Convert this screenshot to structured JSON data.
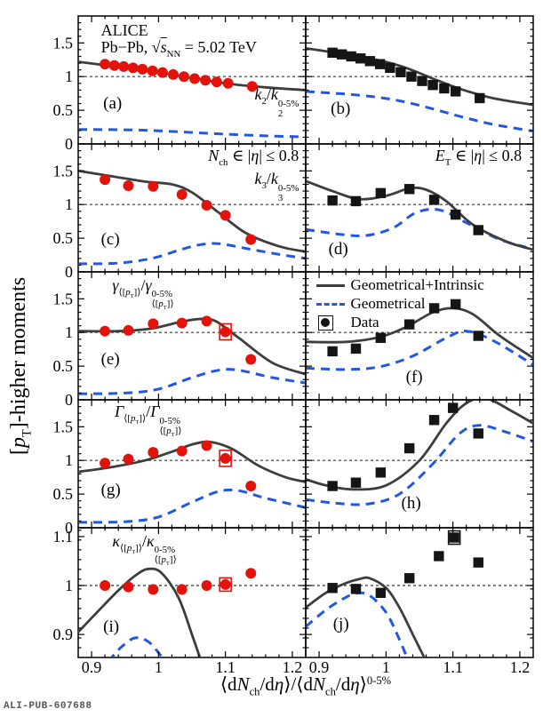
{
  "figure": {
    "watermark": "ALI-PUB-607688",
    "ylabel": "[*{p}_{T}]-higher moments",
    "xlabel": "⟨d*{N}_{ch}/d*{η}⟩/⟨d*{N}_{ch}/d*{η}⟩^{0-5%}",
    "colors": {
      "red": "#e3120b",
      "black": "#151515",
      "solid": "#3d3d3d",
      "dashed": "#2157e2",
      "unity": "#333333",
      "frame": "#000000",
      "watermark": "#555555"
    },
    "legend": {
      "fx": 0.045,
      "fy": 0.035,
      "entries": [
        {
          "swatch": "solid-line",
          "label": "Geometrical+Intrinsic"
        },
        {
          "swatch": "dashed-line",
          "label": "Geometrical"
        },
        {
          "swatch": "data-marker",
          "label": "Data"
        }
      ]
    },
    "axes": {
      "xlim": [
        0.88,
        1.22
      ],
      "xticks": {
        "major": [
          0.9,
          1.0,
          1.1,
          1.2
        ],
        "labels": [
          "0.9",
          "1",
          "1.1",
          "1.2"
        ],
        "minor_step": 0.02
      },
      "wide_ylim": [
        0,
        1.9
      ],
      "wide_yticks": {
        "major": [
          0,
          0.5,
          1.0,
          1.5
        ],
        "labels": [
          "0",
          "0.5",
          "1",
          "1.5"
        ],
        "minor_step": 0.1
      },
      "narrow_ylim": [
        0.853,
        1.118
      ],
      "narrow_yticks": {
        "major": [
          0.9,
          1.0,
          1.1
        ],
        "labels": [
          "0.9",
          "1",
          "1.1"
        ],
        "minor_step": 0.02
      },
      "unity_y": 1.0
    }
  },
  "chart_data": [
    {
      "type": "scatter",
      "id": "a",
      "row": 0,
      "col": 0,
      "yscale": "wide",
      "marker": "circle",
      "color_key": "red",
      "err": 0.03,
      "box_idx": [],
      "x": [
        0.92,
        0.934,
        0.948,
        0.962,
        0.976,
        0.991,
        1.006,
        1.022,
        1.038,
        1.054,
        1.07,
        1.087,
        1.104,
        1.14
      ],
      "y": [
        1.185,
        1.165,
        1.15,
        1.13,
        1.11,
        1.085,
        1.06,
        1.03,
        1.0,
        0.97,
        0.945,
        0.92,
        0.9,
        0.855
      ],
      "solid": {
        "x": [
          0.88,
          0.95,
          1.0,
          1.05,
          1.1,
          1.16,
          1.22
        ],
        "y": [
          1.22,
          1.13,
          1.06,
          0.98,
          0.9,
          0.84,
          0.8
        ]
      },
      "dashed": {
        "x": [
          0.88,
          0.95,
          1.0,
          1.05,
          1.1,
          1.16,
          1.22
        ],
        "y": [
          0.215,
          0.21,
          0.195,
          0.17,
          0.145,
          0.12,
          0.105
        ]
      },
      "annotations": [
        {
          "name": "alice-label",
          "text": "ALICE",
          "fx": 0.1,
          "fy": 0.05,
          "size": 18,
          "align": "left"
        },
        {
          "name": "collision-system-label",
          "text": "Pb−Pb, √~{*{s}}_{NN} = 5.02 TeV",
          "fx": 0.1,
          "fy": 0.18,
          "size": 18,
          "align": "left"
        },
        {
          "name": "panel-letter",
          "text": "(a)",
          "fx": 0.11,
          "fy": 0.62,
          "size": 19,
          "align": "left"
        },
        {
          "name": "observable-label",
          "text": "*{k}_{2}/*{k}_{2}^{0-5%}",
          "fx": 0.97,
          "fy": 0.55,
          "size": 18,
          "align": "right"
        }
      ]
    },
    {
      "type": "scatter",
      "id": "b",
      "row": 0,
      "col": 1,
      "yscale": "wide",
      "marker": "square",
      "color_key": "black",
      "err": 0.035,
      "box_idx": [],
      "x": [
        0.92,
        0.934,
        0.948,
        0.962,
        0.976,
        0.991,
        1.006,
        1.022,
        1.038,
        1.054,
        1.07,
        1.087,
        1.104,
        1.14
      ],
      "y": [
        1.355,
        1.33,
        1.3,
        1.27,
        1.23,
        1.185,
        1.13,
        1.065,
        1.0,
        0.935,
        0.875,
        0.825,
        0.78,
        0.68
      ],
      "solid": {
        "x": [
          0.88,
          0.94,
          0.99,
          1.03,
          1.07,
          1.11,
          1.16,
          1.22
        ],
        "y": [
          1.42,
          1.33,
          1.24,
          1.13,
          0.97,
          0.82,
          0.68,
          0.58
        ]
      },
      "dashed": {
        "x": [
          0.88,
          0.94,
          0.99,
          1.03,
          1.07,
          1.11,
          1.16,
          1.22
        ],
        "y": [
          0.78,
          0.74,
          0.69,
          0.62,
          0.52,
          0.41,
          0.29,
          0.19
        ]
      },
      "annotations": [
        {
          "name": "panel-letter",
          "text": "(b)",
          "fx": 0.11,
          "fy": 0.66,
          "size": 19,
          "align": "left"
        }
      ]
    },
    {
      "type": "scatter",
      "id": "c",
      "row": 1,
      "col": 0,
      "yscale": "wide",
      "marker": "circle",
      "color_key": "red",
      "err": 0.05,
      "box_idx": [],
      "x": [
        0.92,
        0.955,
        0.992,
        1.035,
        1.072,
        1.1,
        1.138
      ],
      "y": [
        1.37,
        1.28,
        1.27,
        1.15,
        0.99,
        0.84,
        0.48
      ],
      "solid": {
        "x": [
          0.88,
          0.93,
          0.98,
          1.02,
          1.05,
          1.09,
          1.13,
          1.18,
          1.22
        ],
        "y": [
          1.5,
          1.42,
          1.34,
          1.3,
          1.18,
          0.88,
          0.58,
          0.38,
          0.3
        ]
      },
      "dashed": {
        "x": [
          0.88,
          0.94,
          0.99,
          1.03,
          1.06,
          1.09,
          1.13,
          1.18,
          1.22
        ],
        "y": [
          0.12,
          0.13,
          0.2,
          0.32,
          0.4,
          0.42,
          0.35,
          0.26,
          0.2
        ]
      },
      "annotations": [
        {
          "name": "selection-label",
          "text": "*{N}_{ch} ∈ |*{η}| ≤ 0.8",
          "fx": 0.97,
          "fy": 0.03,
          "size": 18,
          "align": "right"
        },
        {
          "name": "observable-label",
          "text": "*{k}_{3}/*{k}_{3}^{0-5%}",
          "fx": 0.97,
          "fy": 0.21,
          "size": 18,
          "align": "right"
        },
        {
          "name": "panel-letter",
          "text": "(c)",
          "fx": 0.1,
          "fy": 0.68,
          "size": 19,
          "align": "left"
        }
      ]
    },
    {
      "type": "scatter",
      "id": "d",
      "row": 1,
      "col": 1,
      "yscale": "wide",
      "marker": "square",
      "color_key": "black",
      "err": 0.055,
      "box_idx": [],
      "x": [
        0.92,
        0.955,
        0.992,
        1.035,
        1.072,
        1.104,
        1.138
      ],
      "y": [
        1.06,
        1.05,
        1.17,
        1.23,
        1.07,
        0.85,
        0.62
      ],
      "solid": {
        "x": [
          0.88,
          0.92,
          0.96,
          1.0,
          1.035,
          1.06,
          1.09,
          1.13,
          1.18,
          1.22
        ],
        "y": [
          1.35,
          1.2,
          1.08,
          1.13,
          1.24,
          1.22,
          1.05,
          0.7,
          0.45,
          0.33
        ]
      },
      "dashed": {
        "x": [
          0.88,
          0.93,
          0.97,
          1.01,
          1.045,
          1.08,
          1.12,
          1.17,
          1.22
        ],
        "y": [
          0.63,
          0.56,
          0.54,
          0.65,
          0.88,
          0.92,
          0.73,
          0.48,
          0.34
        ]
      },
      "annotations": [
        {
          "name": "selection-label",
          "text": "*{E}_{T} ∈ |*{η}| ≤ 0.8",
          "fx": 0.95,
          "fy": 0.03,
          "size": 18,
          "align": "right"
        },
        {
          "name": "panel-letter",
          "text": "(d)",
          "fx": 0.1,
          "fy": 0.76,
          "size": 19,
          "align": "left"
        }
      ]
    },
    {
      "type": "scatter",
      "id": "e",
      "row": 2,
      "col": 0,
      "yscale": "wide",
      "marker": "circle",
      "color_key": "red",
      "err": 0.05,
      "box_idx": [
        5
      ],
      "x": [
        0.92,
        0.955,
        0.992,
        1.035,
        1.072,
        1.1,
        1.138
      ],
      "y": [
        1.02,
        1.03,
        1.13,
        1.14,
        1.17,
        1.01,
        0.6
      ],
      "solid": {
        "x": [
          0.88,
          0.94,
          0.99,
          1.03,
          1.06,
          1.085,
          1.12,
          1.17,
          1.22
        ],
        "y": [
          1.02,
          1.02,
          1.06,
          1.15,
          1.2,
          1.17,
          0.92,
          0.55,
          0.38
        ]
      },
      "dashed": {
        "x": [
          0.88,
          0.95,
          1.0,
          1.05,
          1.09,
          1.12,
          1.17,
          1.22
        ],
        "y": [
          0.09,
          0.1,
          0.16,
          0.33,
          0.44,
          0.44,
          0.33,
          0.25
        ]
      },
      "annotations": [
        {
          "name": "observable-label",
          "text": "*{γ}_{⟨[*{p}_{T}]⟩}/*{γ}_{⟨[*{p}_{T}]⟩}^{0-5%}",
          "fx": 0.15,
          "fy": 0.04,
          "size": 18,
          "align": "left"
        },
        {
          "name": "panel-letter",
          "text": "(e)",
          "fx": 0.1,
          "fy": 0.62,
          "size": 19,
          "align": "left"
        }
      ]
    },
    {
      "type": "scatter",
      "id": "f",
      "row": 2,
      "col": 1,
      "yscale": "wide",
      "marker": "square",
      "color_key": "black",
      "err": 0.055,
      "box_idx": [],
      "legend": true,
      "x": [
        0.92,
        0.955,
        0.992,
        1.035,
        1.072,
        1.104,
        1.138
      ],
      "y": [
        0.72,
        0.76,
        0.92,
        1.12,
        1.36,
        1.42,
        0.95
      ],
      "solid": {
        "x": [
          0.88,
          0.94,
          0.99,
          1.03,
          1.07,
          1.1,
          1.13,
          1.17,
          1.22
        ],
        "y": [
          0.86,
          0.86,
          0.93,
          1.08,
          1.3,
          1.36,
          1.27,
          0.95,
          0.62
        ]
      },
      "dashed": {
        "x": [
          0.88,
          0.94,
          0.99,
          1.04,
          1.09,
          1.12,
          1.16,
          1.22
        ],
        "y": [
          0.47,
          0.45,
          0.49,
          0.65,
          0.92,
          1.02,
          0.88,
          0.52
        ]
      },
      "annotations": [
        {
          "name": "panel-letter",
          "text": "(f)",
          "fx": 0.44,
          "fy": 0.76,
          "size": 19,
          "align": "left"
        }
      ]
    },
    {
      "type": "scatter",
      "id": "g",
      "row": 3,
      "col": 0,
      "yscale": "wide",
      "marker": "circle",
      "color_key": "red",
      "err": 0.05,
      "box_idx": [
        5
      ],
      "x": [
        0.92,
        0.955,
        0.992,
        1.035,
        1.072,
        1.1,
        1.138
      ],
      "y": [
        0.96,
        1.02,
        1.12,
        1.14,
        1.22,
        1.03,
        0.62
      ],
      "solid": {
        "x": [
          0.88,
          0.93,
          0.98,
          1.02,
          1.055,
          1.08,
          1.11,
          1.15,
          1.19,
          1.22
        ],
        "y": [
          0.83,
          0.9,
          1.0,
          1.13,
          1.25,
          1.27,
          1.17,
          0.92,
          0.75,
          0.68
        ]
      },
      "dashed": {
        "x": [
          0.88,
          0.95,
          1.0,
          1.05,
          1.09,
          1.12,
          1.16,
          1.22
        ],
        "y": [
          0.08,
          0.09,
          0.16,
          0.38,
          0.54,
          0.55,
          0.44,
          0.3
        ]
      },
      "annotations": [
        {
          "name": "observable-label",
          "text": "*{Γ}_{⟨[*{p}_{T}]⟩}/*{Γ}_{⟨[*{p}_{T}]⟩}^{0-5%}",
          "fx": 0.16,
          "fy": 0.03,
          "size": 18,
          "align": "left"
        },
        {
          "name": "panel-letter",
          "text": "(g)",
          "fx": 0.1,
          "fy": 0.64,
          "size": 19,
          "align": "left"
        }
      ]
    },
    {
      "type": "scatter",
      "id": "h",
      "row": 3,
      "col": 1,
      "yscale": "wide",
      "marker": "square",
      "color_key": "black",
      "err": 0.055,
      "box_idx": [],
      "x": [
        0.92,
        0.955,
        0.992,
        1.035,
        1.072,
        1.1,
        1.138
      ],
      "y": [
        0.62,
        0.67,
        0.82,
        1.18,
        1.6,
        1.78,
        1.4
      ],
      "solid": {
        "x": [
          0.88,
          0.91,
          0.95,
          1.0,
          1.05,
          1.09,
          1.12,
          1.15,
          1.19,
          1.22
        ],
        "y": [
          0.72,
          0.63,
          0.57,
          0.63,
          1.0,
          1.55,
          1.85,
          1.92,
          1.72,
          1.55
        ]
      },
      "dashed": {
        "x": [
          0.88,
          0.92,
          0.97,
          1.02,
          1.07,
          1.11,
          1.14,
          1.18,
          1.22
        ],
        "y": [
          0.42,
          0.37,
          0.35,
          0.5,
          0.95,
          1.4,
          1.52,
          1.42,
          1.28
        ]
      },
      "annotations": [
        {
          "name": "panel-letter",
          "text": "(h)",
          "fx": 0.42,
          "fy": 0.74,
          "size": 19,
          "align": "left"
        }
      ]
    },
    {
      "type": "scatter",
      "id": "i",
      "row": 4,
      "col": 0,
      "yscale": "narrow",
      "marker": "circle",
      "color_key": "red",
      "err": 0.005,
      "box_idx": [
        5
      ],
      "x": [
        0.92,
        0.955,
        0.992,
        1.035,
        1.072,
        1.1,
        1.138
      ],
      "y": [
        1.0,
        0.997,
        0.992,
        0.992,
        1.0,
        1.002,
        1.025
      ],
      "solid": {
        "x": [
          0.88,
          0.91,
          0.94,
          0.965,
          0.985,
          1.005,
          1.03,
          1.05,
          1.07
        ],
        "y": [
          0.905,
          0.948,
          0.99,
          1.02,
          1.034,
          1.025,
          0.975,
          0.9,
          0.82
        ]
      },
      "dashed": {
        "x": [
          0.925,
          0.945,
          0.965,
          0.985,
          1.005,
          1.02
        ],
        "y": [
          0.845,
          0.875,
          0.893,
          0.885,
          0.855,
          0.835
        ]
      },
      "annotations": [
        {
          "name": "observable-label",
          "text": "*{κ}_{⟨[*{p}_{T}]⟩}/*{κ}_{⟨[*{p}_{T}]⟩}^{0-5%}",
          "fx": 0.15,
          "fy": 0.04,
          "size": 18,
          "align": "left"
        },
        {
          "name": "panel-letter",
          "text": "(i)",
          "fx": 0.11,
          "fy": 0.7,
          "size": 19,
          "align": "left"
        }
      ]
    },
    {
      "type": "scatter",
      "id": "j",
      "row": 4,
      "col": 1,
      "yscale": "narrow",
      "marker": "square",
      "color_key": "black",
      "err": 0.006,
      "box_idx": [
        5
      ],
      "x": [
        0.92,
        0.955,
        0.992,
        1.035,
        1.079,
        1.102,
        1.138
      ],
      "y": [
        0.995,
        0.993,
        0.985,
        1.015,
        1.06,
        1.098,
        1.047
      ],
      "solid": {
        "x": [
          0.88,
          0.91,
          0.94,
          0.96,
          0.975,
          1.0,
          1.02,
          1.04,
          1.06,
          1.07
        ],
        "y": [
          0.955,
          0.985,
          1.005,
          1.013,
          1.015,
          0.995,
          0.955,
          0.9,
          0.845,
          0.815
        ]
      },
      "dashed": {
        "x": [
          0.88,
          0.91,
          0.935,
          0.955,
          0.975,
          1.0,
          1.02,
          1.035
        ],
        "y": [
          0.916,
          0.95,
          0.972,
          0.984,
          0.98,
          0.945,
          0.89,
          0.84
        ]
      },
      "annotations": [
        {
          "name": "panel-letter",
          "text": "(j)",
          "fx": 0.12,
          "fy": 0.68,
          "size": 19,
          "align": "left"
        }
      ]
    }
  ]
}
